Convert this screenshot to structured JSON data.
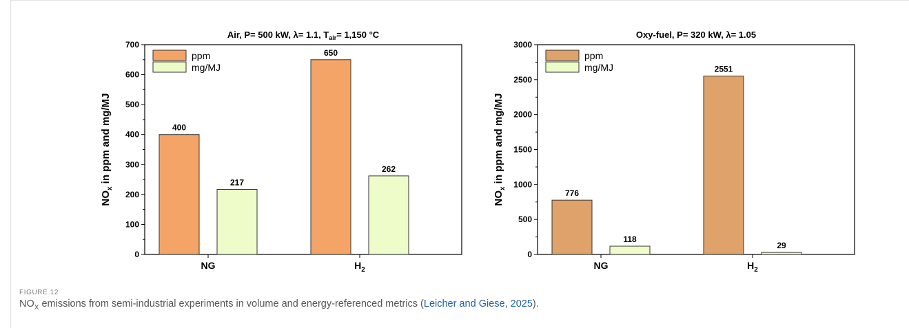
{
  "figure": {
    "label": "FIGURE 12",
    "caption_pre": "NO",
    "caption_sub": "X",
    "caption_mid": " emissions from semi-industrial experiments in volume and energy-referenced metrics (",
    "caption_link": "Leicher and Giese, 2025",
    "caption_post": ")."
  },
  "colors": {
    "ppm_left": "#f4a466",
    "mgmj": "#edfcc9",
    "ppm_right": "#dfa26a",
    "bar_stroke": "#333333"
  },
  "chart_data": [
    {
      "type": "bar",
      "title": "Air, P= 500 kW, λ= 1.1, T",
      "title_sub": "air",
      "title_post": "= 1,150 °C",
      "ylabel": "NO",
      "ylabel_sub": "x",
      "ylabel_post": " in ppm and mg/MJ",
      "xlabel": "",
      "categories": [
        "NG",
        "H"
      ],
      "category_subs": [
        "",
        "2"
      ],
      "series": [
        {
          "name": "ppm",
          "values": [
            400,
            650
          ]
        },
        {
          "name": "mg/MJ",
          "values": [
            217,
            262
          ]
        }
      ],
      "ylim": [
        0,
        700
      ],
      "yticks": [
        0,
        100,
        200,
        300,
        400,
        500,
        600,
        700
      ],
      "legend": "top-left",
      "grid": false
    },
    {
      "type": "bar",
      "title": "Oxy-fuel, P= 320 kW, λ= 1.05",
      "title_sub": "",
      "title_post": "",
      "ylabel": "NO",
      "ylabel_sub": "x",
      "ylabel_post": " in ppm and mg/MJ",
      "xlabel": "",
      "categories": [
        "NG",
        "H"
      ],
      "category_subs": [
        "",
        "2"
      ],
      "series": [
        {
          "name": "ppm",
          "values": [
            776,
            2551
          ]
        },
        {
          "name": "mg/MJ",
          "values": [
            118,
            29
          ]
        }
      ],
      "ylim": [
        0,
        3000
      ],
      "yticks": [
        0,
        500,
        1000,
        1500,
        2000,
        2500,
        3000
      ],
      "legend": "top-left",
      "grid": false
    }
  ]
}
